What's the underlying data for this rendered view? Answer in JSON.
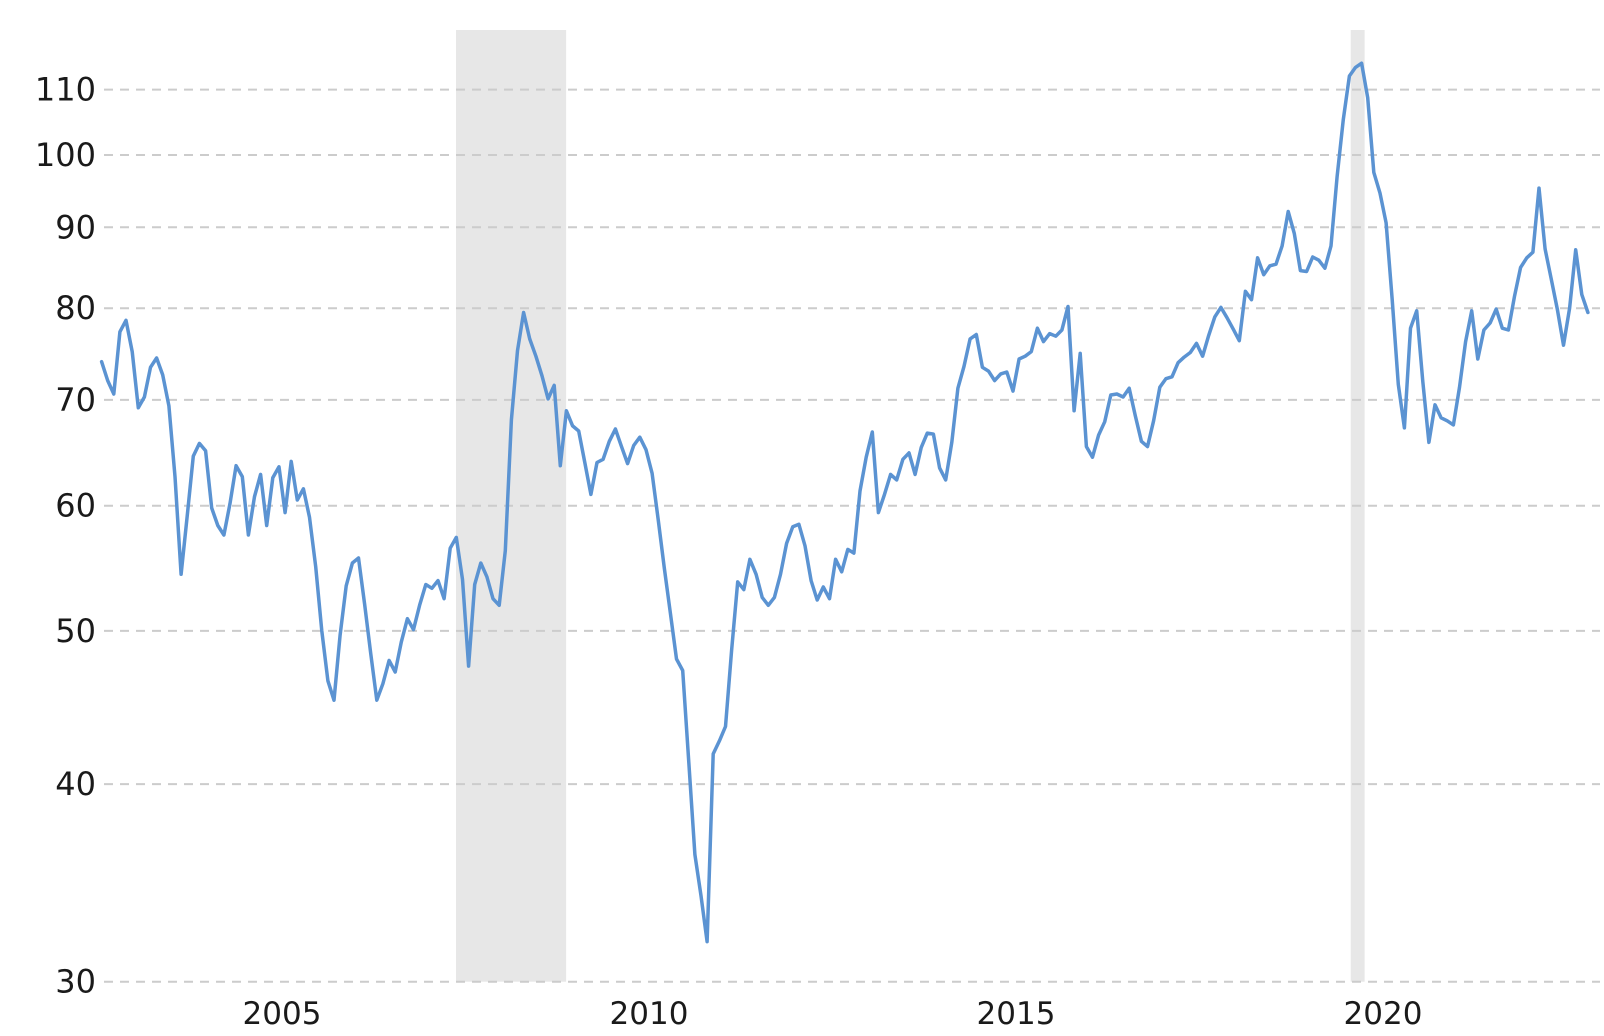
{
  "chart_data": {
    "type": "line",
    "title": "",
    "background_color": "#ffffff",
    "line_color": "#5b93d2",
    "gridline_color": "#cccccc",
    "band_color": "#e7e7e7",
    "text_color": "#1a1a1a",
    "grid": "dashed horizontal",
    "legend": "none",
    "y_axis": {
      "scale": "log",
      "position": "left",
      "ylim": [
        28,
        118
      ],
      "ticks": [
        {
          "label": "30",
          "value": 30
        },
        {
          "label": "40",
          "value": 40
        },
        {
          "label": "50",
          "value": 50
        },
        {
          "label": "60",
          "value": 60
        },
        {
          "label": "70",
          "value": 70
        },
        {
          "label": "80",
          "value": 80
        },
        {
          "label": "90",
          "value": 90
        },
        {
          "label": "100",
          "value": 100
        },
        {
          "label": "110",
          "value": 110
        }
      ]
    },
    "x_axis": {
      "xlim_decimal_years": [
        2002.9,
        2023.5
      ],
      "ticks": [
        {
          "label": "2005",
          "value": 2005.5
        },
        {
          "label": "2010",
          "value": 2010.5
        },
        {
          "label": "2015",
          "value": 2015.5
        },
        {
          "label": "2020",
          "value": 2020.5
        }
      ]
    },
    "shaded_bands": [
      {
        "start": 2007.87,
        "end": 2009.37
      },
      {
        "start": 2020.06,
        "end": 2020.25
      }
    ],
    "series": [
      {
        "name": "main-series",
        "start_decimal_year": 2003.042,
        "step_decimal_year": 0.0833333,
        "frequency": "monthly",
        "values": [
          74,
          72,
          70.6,
          77.3,
          78.6,
          75.1,
          69.2,
          70.3,
          73.4,
          74.4,
          72.6,
          69.4,
          62.6,
          54.3,
          59.1,
          64.5,
          65.7,
          65,
          59.8,
          58.3,
          57.5,
          60.2,
          63.6,
          62.6,
          57.5,
          60.8,
          62.8,
          58.3,
          62.5,
          63.5,
          59.4,
          64,
          60.5,
          61.5,
          59,
          54.9,
          50,
          46.5,
          45.2,
          49.7,
          53.4,
          55.2,
          55.6,
          52,
          48.4,
          45.2,
          46.3,
          47.9,
          47.1,
          49.2,
          50.9,
          50.1,
          51.9,
          53.5,
          53.2,
          53.8,
          52.4,
          56.4,
          57.3,
          53.9,
          47.5,
          53.5,
          55.2,
          54.1,
          52.4,
          51.9,
          56.2,
          68,
          75.2,
          79.5,
          76.5,
          74.6,
          72.5,
          70.1,
          71.5,
          63.6,
          68.9,
          67.4,
          66.9,
          63.9,
          61,
          63.9,
          64.2,
          65.9,
          67.1,
          65.4,
          63.8,
          65.5,
          66.3,
          65.1,
          62.9,
          58.8,
          54.8,
          51.3,
          48,
          47.2,
          41.3,
          36.1,
          34,
          31.8,
          41.8,
          42.6,
          43.5,
          48.6,
          53.7,
          53.1,
          55.5,
          54.3,
          52.5,
          51.9,
          52.5,
          54.3,
          56.8,
          58.2,
          58.4,
          56.6,
          53.8,
          52.3,
          53.3,
          52.4,
          55.5,
          54.5,
          56.3,
          56,
          61.3,
          64.4,
          66.8,
          59.4,
          61,
          62.8,
          62.3,
          64.2,
          64.8,
          62.8,
          65.3,
          66.7,
          66.6,
          63.4,
          62.3,
          65.8,
          71.2,
          73.5,
          76.5,
          77,
          73.4,
          73,
          72,
          72.7,
          72.9,
          70.9,
          74.3,
          74.6,
          75.1,
          77.7,
          76.2,
          77.1,
          76.8,
          77.5,
          80.2,
          68.9,
          74.9,
          65.4,
          64.4,
          66.5,
          67.8,
          70.5,
          70.6,
          70.3,
          71.2,
          68.4,
          65.9,
          65.4,
          67.9,
          71.3,
          72.2,
          72.4,
          73.9,
          74.5,
          75,
          76,
          74.6,
          76.9,
          79,
          80.1,
          78.9,
          77.6,
          76.3,
          82,
          81,
          86.1,
          84,
          85.1,
          85.3,
          87.6,
          92.1,
          89.2,
          84.5,
          84.4,
          86.2,
          85.8,
          84.8,
          87.6,
          96.9,
          105.3,
          112.2,
          113.6,
          114.3,
          108.7,
          97.5,
          94.6,
          90.6,
          81,
          71.6,
          67.2,
          77.7,
          79.7,
          71.9,
          65.8,
          69.5,
          68.2,
          67.9,
          67.5,
          71.3,
          76.2,
          79.7,
          74.3,
          77.5,
          78.3,
          79.9,
          77.7,
          77.5,
          81.4,
          84.9,
          86.1,
          86.8,
          95.3,
          87.2,
          83.5,
          79.9,
          75.8,
          80,
          87.1,
          81.6,
          79.5
        ]
      }
    ]
  }
}
